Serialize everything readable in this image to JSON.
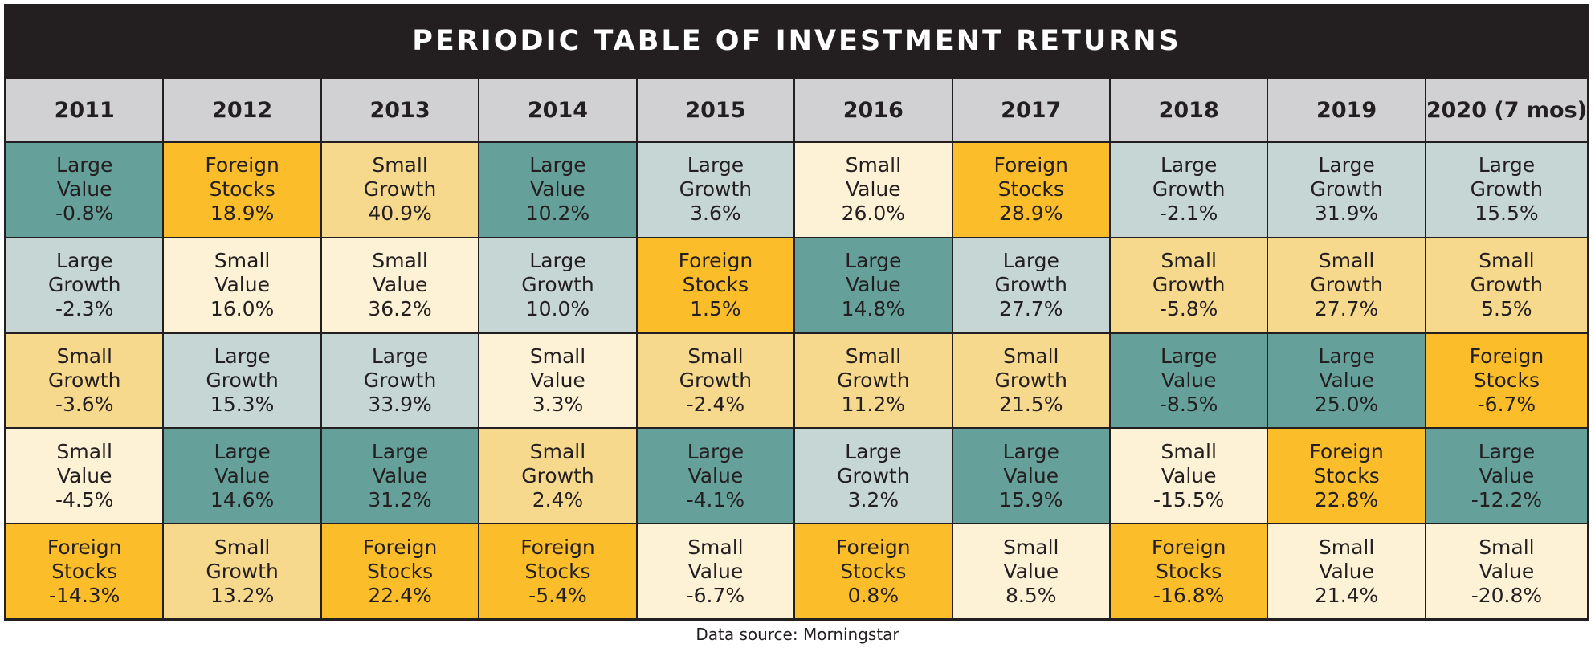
{
  "title": "PERIODIC TABLE OF INVESTMENT RETURNS",
  "source": "Data source: Morningstar",
  "colors": {
    "Large Value": "#65a09b",
    "Large Growth": "#c5d6d5",
    "Small Value": "#fdf1d6",
    "Small Growth": "#f6d98d",
    "Foreign Stocks": "#fbbe2a"
  },
  "chart_data": {
    "type": "table",
    "title": "PERIODIC TABLE OF INVESTMENT RETURNS",
    "columns": [
      "2011",
      "2012",
      "2013",
      "2014",
      "2015",
      "2016",
      "2017",
      "2018",
      "2019",
      "2020 (7 mos)"
    ],
    "rows": [
      [
        {
          "line1": "Large",
          "line2": "Value",
          "category": "Large Value",
          "value": "-0.8%"
        },
        {
          "line1": "Foreign",
          "line2": "Stocks",
          "category": "Foreign Stocks",
          "value": "18.9%"
        },
        {
          "line1": "Small",
          "line2": "Growth",
          "category": "Small Growth",
          "value": "40.9%"
        },
        {
          "line1": "Large",
          "line2": "Value",
          "category": "Large Value",
          "value": "10.2%"
        },
        {
          "line1": "Large",
          "line2": "Growth",
          "category": "Large Growth",
          "value": "3.6%"
        },
        {
          "line1": "Small",
          "line2": "Value",
          "category": "Small Value",
          "value": "26.0%"
        },
        {
          "line1": "Foreign",
          "line2": "Stocks",
          "category": "Foreign Stocks",
          "value": "28.9%"
        },
        {
          "line1": "Large",
          "line2": "Growth",
          "category": "Large Growth",
          "value": "-2.1%"
        },
        {
          "line1": "Large",
          "line2": "Growth",
          "category": "Large Growth",
          "value": "31.9%"
        },
        {
          "line1": "Large",
          "line2": "Growth",
          "category": "Large Growth",
          "value": "15.5%"
        }
      ],
      [
        {
          "line1": "Large",
          "line2": "Growth",
          "category": "Large Growth",
          "value": "-2.3%"
        },
        {
          "line1": "Small",
          "line2": "Value",
          "category": "Small Value",
          "value": "16.0%"
        },
        {
          "line1": "Small",
          "line2": "Value",
          "category": "Small Value",
          "value": "36.2%"
        },
        {
          "line1": "Large",
          "line2": "Growth",
          "category": "Large Growth",
          "value": "10.0%"
        },
        {
          "line1": "Foreign",
          "line2": "Stocks",
          "category": "Foreign Stocks",
          "value": "1.5%"
        },
        {
          "line1": "Large",
          "line2": "Value",
          "category": "Large Value",
          "value": "14.8%"
        },
        {
          "line1": "Large",
          "line2": "Growth",
          "category": "Large Growth",
          "value": "27.7%"
        },
        {
          "line1": "Small",
          "line2": "Growth",
          "category": "Small Growth",
          "value": "-5.8%"
        },
        {
          "line1": "Small",
          "line2": "Growth",
          "category": "Small Growth",
          "value": "27.7%"
        },
        {
          "line1": "Small",
          "line2": "Growth",
          "category": "Small Growth",
          "value": "5.5%"
        }
      ],
      [
        {
          "line1": "Small",
          "line2": "Growth",
          "category": "Small Growth",
          "value": "-3.6%"
        },
        {
          "line1": "Large",
          "line2": "Growth",
          "category": "Large Growth",
          "value": "15.3%"
        },
        {
          "line1": "Large",
          "line2": "Growth",
          "category": "Large Growth",
          "value": "33.9%"
        },
        {
          "line1": "Small",
          "line2": "Value",
          "category": "Small Value",
          "value": "3.3%"
        },
        {
          "line1": "Small",
          "line2": "Growth",
          "category": "Small Growth",
          "value": "-2.4%"
        },
        {
          "line1": "Small",
          "line2": "Growth",
          "category": "Small Growth",
          "value": "11.2%"
        },
        {
          "line1": "Small",
          "line2": "Growth",
          "category": "Small Growth",
          "value": "21.5%"
        },
        {
          "line1": "Large",
          "line2": "Value",
          "category": "Large Value",
          "value": "-8.5%"
        },
        {
          "line1": "Large",
          "line2": "Value",
          "category": "Large Value",
          "value": "25.0%"
        },
        {
          "line1": "Foreign",
          "line2": "Stocks",
          "category": "Foreign Stocks",
          "value": "-6.7%"
        }
      ],
      [
        {
          "line1": "Small",
          "line2": "Value",
          "category": "Small Value",
          "value": "-4.5%"
        },
        {
          "line1": "Large",
          "line2": "Value",
          "category": "Large Value",
          "value": "14.6%"
        },
        {
          "line1": "Large",
          "line2": "Value",
          "category": "Large Value",
          "value": "31.2%"
        },
        {
          "line1": "Small",
          "line2": "Growth",
          "category": "Small Growth",
          "value": "2.4%"
        },
        {
          "line1": "Large",
          "line2": "Value",
          "category": "Large Value",
          "value": "-4.1%"
        },
        {
          "line1": "Large",
          "line2": "Growth",
          "category": "Large Growth",
          "value": "3.2%"
        },
        {
          "line1": "Large",
          "line2": "Value",
          "category": "Large Value",
          "value": "15.9%"
        },
        {
          "line1": "Small",
          "line2": "Value",
          "category": "Small Value",
          "value": "-15.5%"
        },
        {
          "line1": "Foreign",
          "line2": "Stocks",
          "category": "Foreign Stocks",
          "value": "22.8%"
        },
        {
          "line1": "Large",
          "line2": "Value",
          "category": "Large Value",
          "value": "-12.2%"
        }
      ],
      [
        {
          "line1": "Foreign",
          "line2": "Stocks",
          "category": "Foreign Stocks",
          "value": "-14.3%"
        },
        {
          "line1": "Small",
          "line2": "Growth",
          "category": "Small Growth",
          "value": "13.2%"
        },
        {
          "line1": "Foreign",
          "line2": "Stocks",
          "category": "Foreign Stocks",
          "value": "22.4%"
        },
        {
          "line1": "Foreign",
          "line2": "Stocks",
          "category": "Foreign Stocks",
          "value": "-5.4%"
        },
        {
          "line1": "Small",
          "line2": "Value",
          "category": "Small Value",
          "value": "-6.7%"
        },
        {
          "line1": "Foreign",
          "line2": "Stocks",
          "category": "Foreign Stocks",
          "value": "0.8%"
        },
        {
          "line1": "Small",
          "line2": "Value",
          "category": "Small Value",
          "value": "8.5%"
        },
        {
          "line1": "Foreign",
          "line2": "Stocks",
          "category": "Foreign Stocks",
          "value": "-16.8%"
        },
        {
          "line1": "Small",
          "line2": "Value",
          "category": "Small Value",
          "value": "21.4%"
        },
        {
          "line1": "Small",
          "line2": "Value",
          "category": "Small Value",
          "value": "-20.8%"
        }
      ]
    ]
  }
}
